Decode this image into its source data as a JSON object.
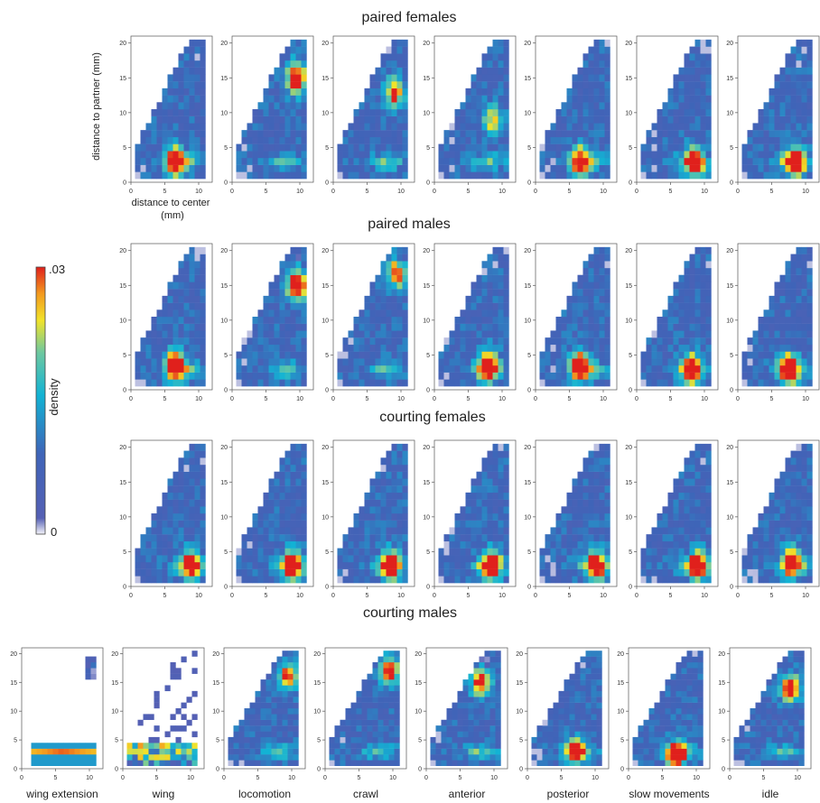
{
  "figure": {
    "rows": [
      {
        "title": "paired females"
      },
      {
        "title": "paired males"
      },
      {
        "title": "courting females"
      },
      {
        "title": "courting males"
      }
    ],
    "panel_labels": [
      "wing extension",
      "wing",
      "locomotion",
      "crawl",
      "anterior",
      "posterior",
      "slow movements",
      "idle"
    ],
    "ylabel": "distance to partner (mm)",
    "xlabel_line1": "distance to center",
    "xlabel_line2": "(mm)",
    "colorbar": {
      "label": "density",
      "max_label": ".03",
      "min_label": "0"
    },
    "x_ticks": [
      "0",
      "5",
      "10"
    ],
    "y_ticks": [
      "0",
      "5",
      "10",
      "15",
      "20"
    ],
    "colors": {
      "low": "#f0f0f8",
      "mid_low": "#3b4ea8",
      "mid": "#11b4d6",
      "mid_high": "#f2ea2a",
      "high": "#e2231a"
    }
  },
  "chart_data": {
    "type": "heatmap",
    "x_range": [
      0,
      12
    ],
    "y_range": [
      0,
      21
    ],
    "colorbar_range": [
      0,
      0.03
    ],
    "grid": false,
    "note_axes": "x = distance to center (mm), y = distance to partner (mm)",
    "rows": [
      {
        "title": "paired females",
        "panels": 7,
        "hotspots": [
          {
            "x": 6.5,
            "y": 3.0,
            "level": 0.9
          },
          {
            "x": 9.5,
            "y": 15.0,
            "level": 0.95
          },
          {
            "x": 9.0,
            "y": 13.0,
            "level": 0.75
          },
          {
            "x": 8.5,
            "y": 9.0,
            "level": 0.55
          },
          {
            "x": 6.5,
            "y": 3.0,
            "level": 0.8
          },
          {
            "x": 8.5,
            "y": 3.0,
            "level": 0.8
          },
          {
            "x": 8.5,
            "y": 3.0,
            "level": 0.95
          }
        ]
      },
      {
        "title": "paired males",
        "panels": 7,
        "hotspots": [
          {
            "x": 6.5,
            "y": 3.5,
            "level": 0.95
          },
          {
            "x": 9.5,
            "y": 15.0,
            "level": 1.0
          },
          {
            "x": 9.5,
            "y": 17.0,
            "level": 0.75
          },
          {
            "x": 8.0,
            "y": 3.5,
            "level": 0.9
          },
          {
            "x": 6.5,
            "y": 3.5,
            "level": 0.9
          },
          {
            "x": 8.0,
            "y": 3.0,
            "level": 0.85
          },
          {
            "x": 7.5,
            "y": 3.0,
            "level": 0.95
          }
        ]
      },
      {
        "title": "courting females",
        "panels": 7,
        "hotspots": [
          {
            "x": 9.0,
            "y": 3.0,
            "level": 0.85
          },
          {
            "x": 9.0,
            "y": 3.0,
            "level": 0.9
          },
          {
            "x": 8.5,
            "y": 3.0,
            "level": 0.85
          },
          {
            "x": 8.5,
            "y": 3.0,
            "level": 0.85
          },
          {
            "x": 9.0,
            "y": 3.0,
            "level": 0.8
          },
          {
            "x": 9.0,
            "y": 3.0,
            "level": 0.8
          },
          {
            "x": 8.0,
            "y": 3.5,
            "level": 0.8
          }
        ]
      },
      {
        "title": "courting males",
        "panels": 8,
        "hotspots": [
          {
            "x": 6.0,
            "y": 2.8,
            "level": 1.0
          },
          {
            "x": 7.0,
            "y": 3.0,
            "level": 0.95
          },
          {
            "x": 9.5,
            "y": 16.0,
            "level": 0.8
          },
          {
            "x": 9.5,
            "y": 17.0,
            "level": 0.85
          },
          {
            "x": 8.0,
            "y": 15.0,
            "level": 0.9
          },
          {
            "x": 7.0,
            "y": 3.0,
            "level": 0.85
          },
          {
            "x": 7.0,
            "y": 2.5,
            "level": 1.0
          },
          {
            "x": 9.0,
            "y": 14.0,
            "level": 0.95
          }
        ]
      }
    ]
  }
}
